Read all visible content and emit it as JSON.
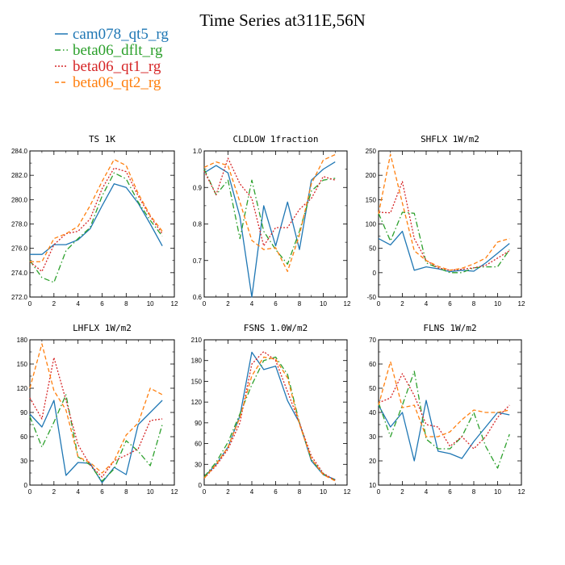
{
  "title": "Time Series at311E,56N",
  "legend": [
    {
      "name": "cam078_qt5_rg",
      "color": "#1f77b4",
      "dash": "solid"
    },
    {
      "name": "beta06_dflt_rg",
      "color": "#2ca02c",
      "dash": "dashdot"
    },
    {
      "name": "beta06_qt1_rg",
      "color": "#d62728",
      "dash": "dotted"
    },
    {
      "name": "beta06_qt2_rg",
      "color": "#ff7f0e",
      "dash": "dashed"
    }
  ],
  "chart_data": [
    {
      "type": "line",
      "title": "TS   1K",
      "x": [
        0,
        1,
        2,
        3,
        4,
        5,
        6,
        7,
        8,
        9,
        10,
        11
      ],
      "xlim": [
        0,
        12
      ],
      "ylim": [
        272,
        284
      ],
      "xticks": [
        0,
        2,
        4,
        6,
        8,
        10,
        12
      ],
      "yticks": [
        "272.0",
        "274.0",
        "276.0",
        "278.0",
        "280.0",
        "282.0",
        "284.0"
      ],
      "series": [
        {
          "name": "cam078_qt5_rg",
          "values": [
            275.5,
            275.5,
            276.3,
            276.3,
            276.7,
            277.6,
            279.5,
            281.3,
            281.0,
            279.7,
            278.0,
            276.2
          ]
        },
        {
          "name": "beta06_dflt_rg",
          "values": [
            275.0,
            273.6,
            273.2,
            275.8,
            276.8,
            277.7,
            280.3,
            282.2,
            281.7,
            279.8,
            278.3,
            277.0
          ]
        },
        {
          "name": "beta06_qt1_rg",
          "values": [
            274.9,
            274.1,
            276.3,
            277.2,
            277.4,
            278.4,
            280.9,
            282.6,
            282.3,
            280.3,
            278.6,
            277.2
          ]
        },
        {
          "name": "beta06_qt2_rg",
          "values": [
            274.9,
            274.9,
            276.8,
            277.2,
            277.8,
            279.5,
            281.5,
            283.3,
            282.8,
            280.5,
            278.7,
            277.4
          ]
        }
      ]
    },
    {
      "type": "line",
      "title": "CLDLOW   1fraction",
      "x": [
        0,
        1,
        2,
        3,
        4,
        5,
        6,
        7,
        8,
        9,
        10,
        11
      ],
      "xlim": [
        0,
        12
      ],
      "ylim": [
        0.6,
        1.0
      ],
      "xticks": [
        0,
        2,
        4,
        6,
        8,
        10,
        12
      ],
      "yticks": [
        "0.6",
        "0.7",
        "0.8",
        "0.9",
        "1.0"
      ],
      "series": [
        {
          "name": "cam078_qt5_rg",
          "values": [
            0.94,
            0.96,
            0.94,
            0.82,
            0.6,
            0.85,
            0.74,
            0.86,
            0.73,
            0.92,
            0.95,
            0.97
          ]
        },
        {
          "name": "beta06_dflt_rg",
          "values": [
            0.95,
            0.88,
            0.92,
            0.76,
            0.92,
            0.78,
            0.73,
            0.69,
            0.78,
            0.89,
            0.92,
            0.925
          ]
        },
        {
          "name": "beta06_qt1_rg",
          "values": [
            0.945,
            0.88,
            0.98,
            0.91,
            0.87,
            0.74,
            0.79,
            0.79,
            0.84,
            0.87,
            0.93,
            0.92
          ]
        },
        {
          "name": "beta06_qt2_rg",
          "values": [
            0.955,
            0.97,
            0.96,
            0.86,
            0.755,
            0.73,
            0.735,
            0.67,
            0.77,
            0.91,
            0.975,
            0.99
          ]
        }
      ]
    },
    {
      "type": "line",
      "title": "SHFLX   1W/m2",
      "x": [
        0,
        1,
        2,
        3,
        4,
        5,
        6,
        7,
        8,
        9,
        10,
        11
      ],
      "xlim": [
        0,
        12
      ],
      "ylim": [
        -50,
        250
      ],
      "xticks": [
        0,
        2,
        4,
        6,
        8,
        10,
        12
      ],
      "yticks": [
        "-50",
        "0",
        "50",
        "100",
        "150",
        "200",
        "250"
      ],
      "series": [
        {
          "name": "cam078_qt5_rg",
          "values": [
            70,
            57,
            85,
            5,
            12,
            8,
            2,
            5,
            3,
            20,
            40,
            60
          ]
        },
        {
          "name": "beta06_dflt_rg",
          "values": [
            122,
            65,
            124,
            122,
            20,
            10,
            0,
            0,
            10,
            12,
            12,
            47
          ]
        },
        {
          "name": "beta06_qt1_rg",
          "values": [
            124,
            123,
            187,
            70,
            25,
            10,
            5,
            7,
            10,
            15,
            30,
            45
          ]
        },
        {
          "name": "beta06_qt2_rg",
          "values": [
            121,
            243,
            143,
            45,
            25,
            13,
            5,
            9,
            18,
            30,
            63,
            70
          ]
        }
      ]
    },
    {
      "type": "line",
      "title": "LHFLX   1W/m2",
      "x": [
        0,
        1,
        2,
        3,
        4,
        5,
        6,
        7,
        8,
        9,
        10,
        11
      ],
      "xlim": [
        0,
        12
      ],
      "ylim": [
        0,
        180
      ],
      "xticks": [
        0,
        2,
        4,
        6,
        8,
        10,
        12
      ],
      "yticks": [
        "0",
        "30",
        "60",
        "90",
        "120",
        "150",
        "180"
      ],
      "series": [
        {
          "name": "cam078_qt5_rg",
          "values": [
            88,
            72,
            105,
            12,
            28,
            27,
            3,
            22,
            13,
            75,
            90,
            105
          ]
        },
        {
          "name": "beta06_dflt_rg",
          "values": [
            85,
            47,
            78,
            112,
            35,
            25,
            5,
            20,
            55,
            42,
            24,
            75
          ]
        },
        {
          "name": "beta06_qt1_rg",
          "values": [
            108,
            82,
            158,
            105,
            50,
            25,
            10,
            30,
            37,
            45,
            80,
            82
          ]
        },
        {
          "name": "beta06_qt2_rg",
          "values": [
            120,
            175,
            117,
            93,
            35,
            28,
            15,
            30,
            62,
            77,
            120,
            112
          ]
        }
      ]
    },
    {
      "type": "line",
      "title": "FSNS   1.0W/m2",
      "x": [
        0,
        1,
        2,
        3,
        4,
        5,
        6,
        7,
        8,
        9,
        10,
        11
      ],
      "xlim": [
        0,
        12
      ],
      "ylim": [
        0,
        210
      ],
      "xticks": [
        0,
        2,
        4,
        6,
        8,
        10,
        12
      ],
      "yticks": [
        "0",
        "30",
        "60",
        "90",
        "120",
        "150",
        "180",
        "210"
      ],
      "series": [
        {
          "name": "cam078_qt5_rg",
          "values": [
            12,
            30,
            55,
            100,
            192,
            167,
            172,
            122,
            90,
            35,
            15,
            8
          ]
        },
        {
          "name": "beta06_dflt_rg",
          "values": [
            12,
            33,
            62,
            103,
            145,
            180,
            185,
            160,
            90,
            37,
            16,
            7
          ]
        },
        {
          "name": "beta06_qt1_rg",
          "values": [
            10,
            28,
            52,
            90,
            175,
            193,
            180,
            135,
            90,
            42,
            17,
            7
          ]
        },
        {
          "name": "beta06_qt2_rg",
          "values": [
            10,
            30,
            55,
            98,
            158,
            185,
            182,
            155,
            88,
            38,
            15,
            6
          ]
        }
      ]
    },
    {
      "type": "line",
      "title": "FLNS   1W/m2",
      "x": [
        0,
        1,
        2,
        3,
        4,
        5,
        6,
        7,
        8,
        9,
        10,
        11
      ],
      "xlim": [
        0,
        12
      ],
      "ylim": [
        10,
        70
      ],
      "xticks": [
        0,
        2,
        4,
        6,
        8,
        10,
        12
      ],
      "yticks": [
        "10",
        "20",
        "30",
        "40",
        "50",
        "60",
        "70"
      ],
      "series": [
        {
          "name": "cam078_qt5_rg",
          "values": [
            43,
            34,
            40,
            20,
            45,
            24,
            23,
            21,
            28,
            34,
            40,
            39
          ]
        },
        {
          "name": "beta06_dflt_rg",
          "values": [
            44,
            30,
            43,
            57,
            29,
            25,
            25,
            30,
            40,
            26,
            17,
            31
          ]
        },
        {
          "name": "beta06_qt1_rg",
          "values": [
            44,
            46,
            56,
            47,
            35,
            34,
            26,
            30,
            25,
            30,
            38,
            43
          ]
        },
        {
          "name": "beta06_qt2_rg",
          "values": [
            43,
            61,
            42,
            43,
            30,
            30,
            32,
            37,
            41,
            40,
            40,
            41
          ]
        }
      ]
    }
  ]
}
